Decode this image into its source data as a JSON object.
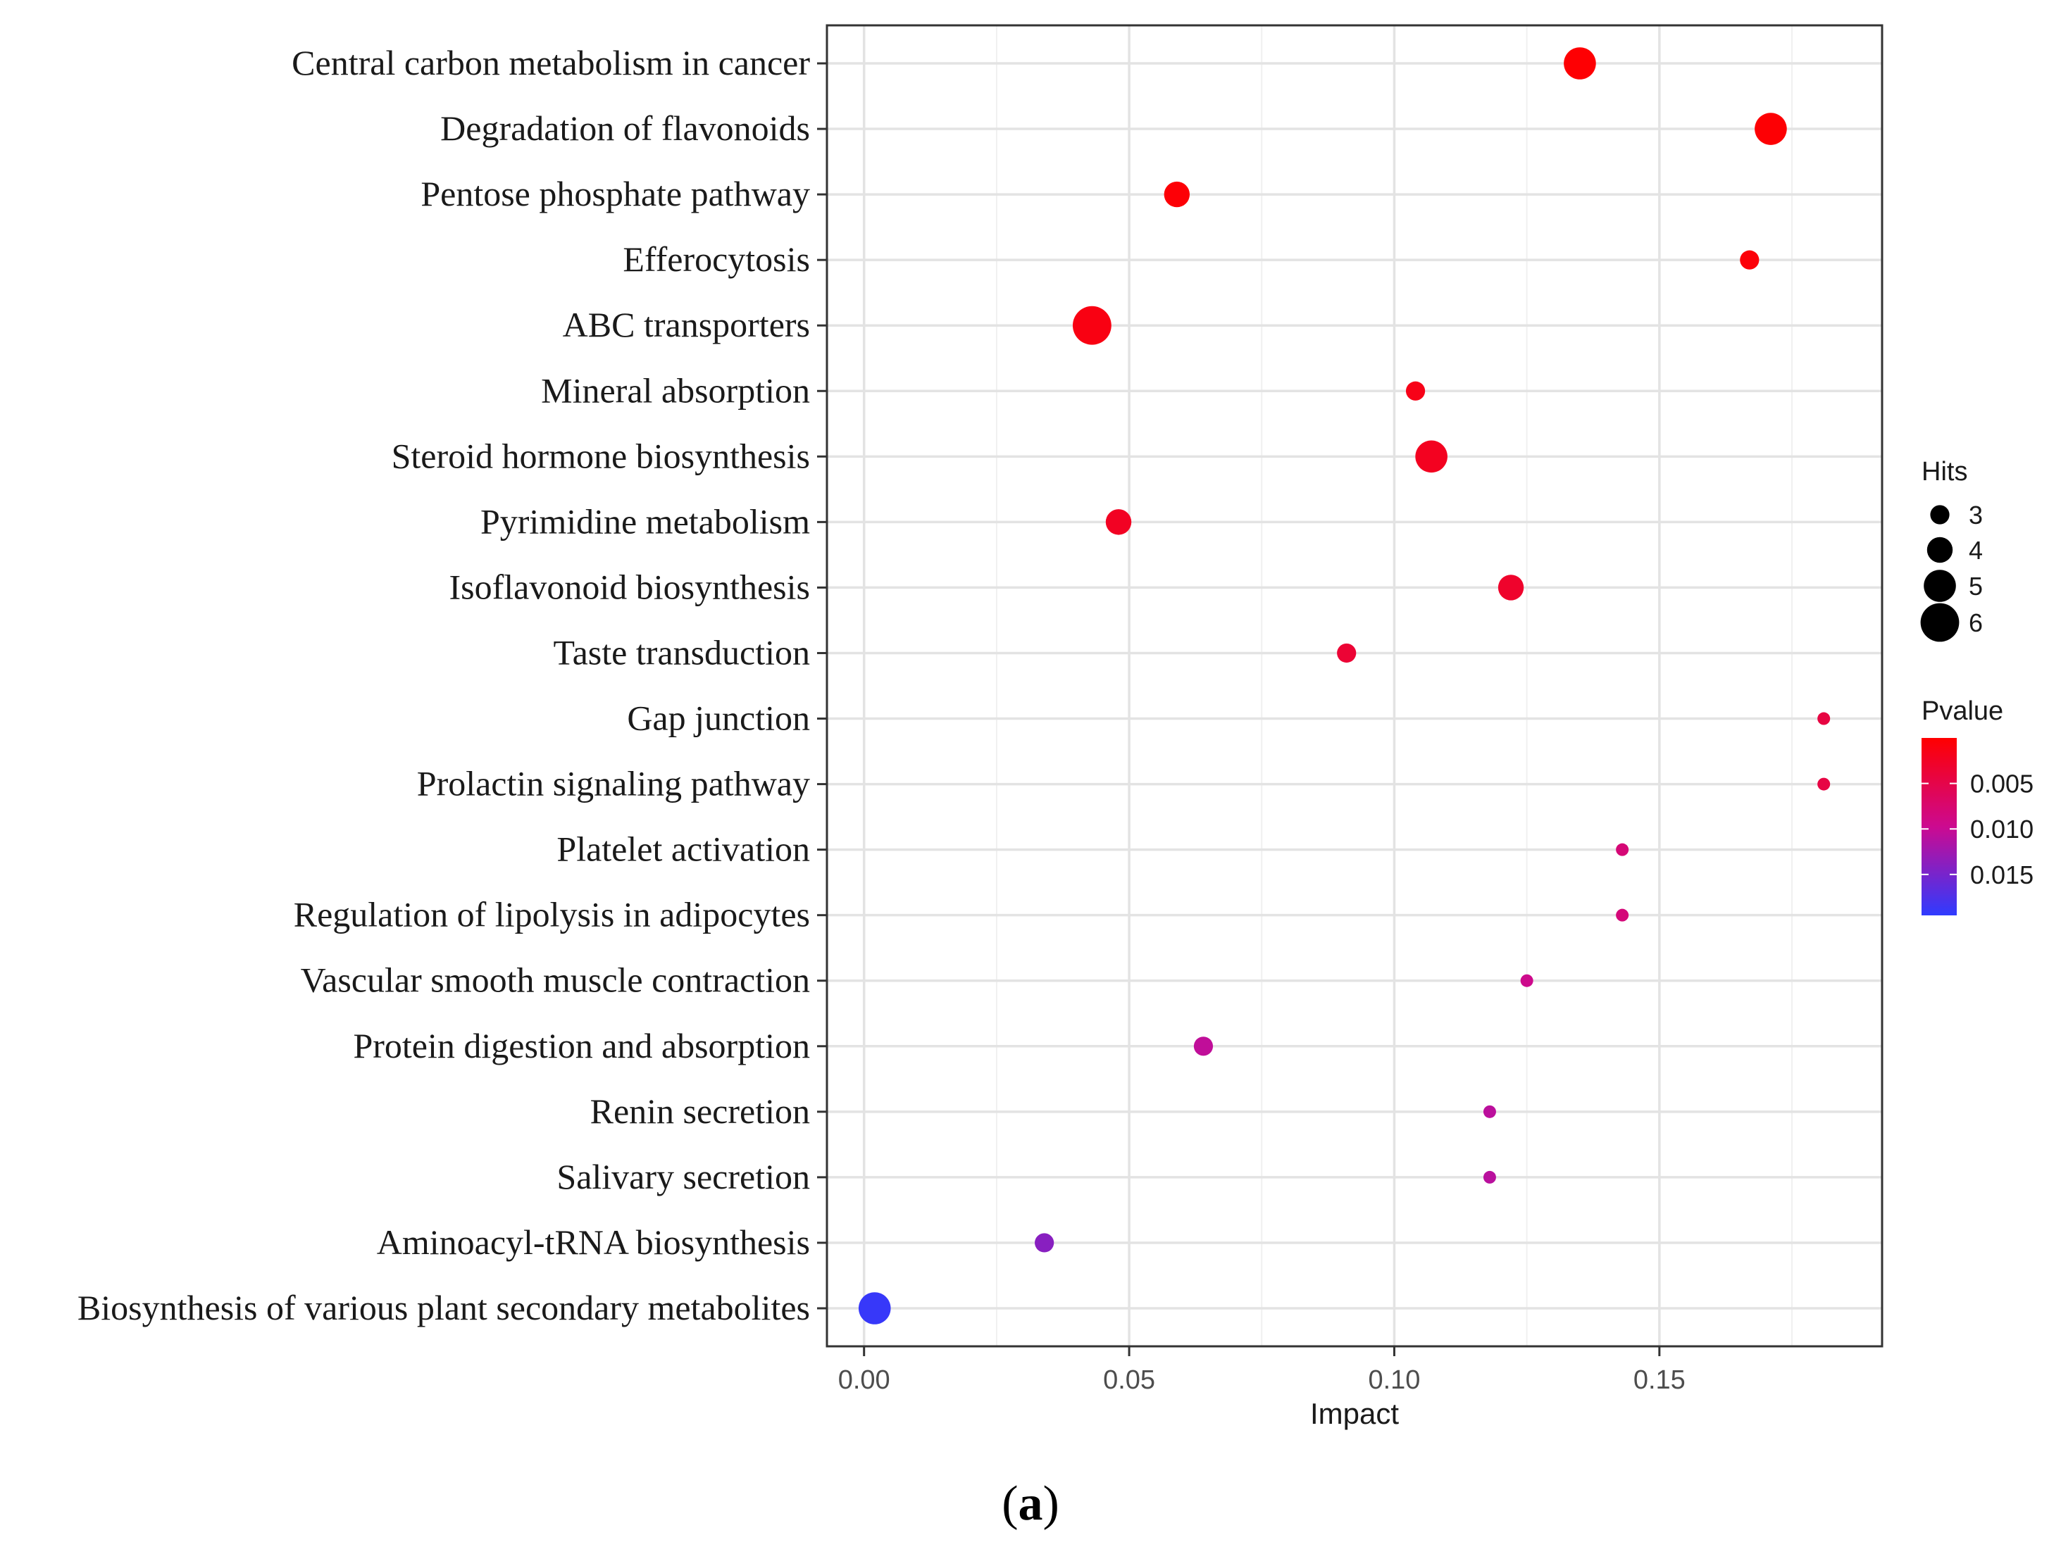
{
  "chart_data": {
    "type": "scatter",
    "title": "",
    "xlabel": "Impact",
    "ylabel": "",
    "xlim": [
      -0.007,
      0.192
    ],
    "xticks": [
      0.0,
      0.05,
      0.1,
      0.15
    ],
    "xtick_labels": [
      "0.00",
      "0.05",
      "0.10",
      "0.15"
    ],
    "grid": true,
    "categories": [
      "Central carbon metabolism in cancer",
      "Degradation of flavonoids",
      "Pentose phosphate pathway",
      "Efferocytosis",
      "ABC transporters",
      "Mineral absorption",
      "Steroid hormone biosynthesis",
      "Pyrimidine metabolism",
      "Isoflavonoid biosynthesis",
      "Taste transduction",
      "Gap junction",
      "Prolactin signaling pathway",
      "Platelet activation",
      "Regulation of lipolysis in adipocytes",
      "Vascular smooth muscle contraction",
      "Protein digestion and absorption",
      "Renin secretion",
      "Salivary secretion",
      "Aminoacyl-tRNA biosynthesis",
      "Biosynthesis of various plant secondary metabolites"
    ],
    "points": [
      {
        "pathway": "Central carbon metabolism in cancer",
        "impact": 0.135,
        "hits": 5,
        "pvalue": 0.0002
      },
      {
        "pathway": "Degradation of flavonoids",
        "impact": 0.171,
        "hits": 5,
        "pvalue": 0.0003
      },
      {
        "pathway": "Pentose phosphate pathway",
        "impact": 0.059,
        "hits": 4,
        "pvalue": 0.0004
      },
      {
        "pathway": "Efferocytosis",
        "impact": 0.167,
        "hits": 3,
        "pvalue": 0.0006
      },
      {
        "pathway": "ABC transporters",
        "impact": 0.043,
        "hits": 6,
        "pvalue": 0.0012
      },
      {
        "pathway": "Mineral absorption",
        "impact": 0.104,
        "hits": 3,
        "pvalue": 0.0016
      },
      {
        "pathway": "Steroid hormone biosynthesis",
        "impact": 0.107,
        "hits": 5,
        "pvalue": 0.0022
      },
      {
        "pathway": "Pyrimidine metabolism",
        "impact": 0.048,
        "hits": 4,
        "pvalue": 0.0024
      },
      {
        "pathway": "Isoflavonoid biosynthesis",
        "impact": 0.122,
        "hits": 4,
        "pvalue": 0.003
      },
      {
        "pathway": "Taste transduction",
        "impact": 0.091,
        "hits": 3,
        "pvalue": 0.0036
      },
      {
        "pathway": "Gap junction",
        "impact": 0.181,
        "hits": 2,
        "pvalue": 0.0045
      },
      {
        "pathway": "Prolactin signaling pathway",
        "impact": 0.181,
        "hits": 2,
        "pvalue": 0.0046
      },
      {
        "pathway": "Platelet activation",
        "impact": 0.143,
        "hits": 2,
        "pvalue": 0.008
      },
      {
        "pathway": "Regulation of lipolysis in adipocytes",
        "impact": 0.143,
        "hits": 2,
        "pvalue": 0.0082
      },
      {
        "pathway": "Vascular smooth muscle contraction",
        "impact": 0.125,
        "hits": 2,
        "pvalue": 0.0095
      },
      {
        "pathway": "Protein digestion and absorption",
        "impact": 0.064,
        "hits": 3,
        "pvalue": 0.0105
      },
      {
        "pathway": "Renin secretion",
        "impact": 0.118,
        "hits": 2,
        "pvalue": 0.0108
      },
      {
        "pathway": "Salivary secretion",
        "impact": 0.118,
        "hits": 2,
        "pvalue": 0.0109
      },
      {
        "pathway": "Aminoacyl-tRNA biosynthesis",
        "impact": 0.034,
        "hits": 3,
        "pvalue": 0.014
      },
      {
        "pathway": "Biosynthesis of various plant secondary metabolites",
        "impact": 0.002,
        "hits": 5,
        "pvalue": 0.019
      }
    ],
    "size_legend": {
      "title": "Hits",
      "values": [
        3,
        4,
        5,
        6
      ],
      "labels": [
        "3",
        "4",
        "5",
        "6"
      ]
    },
    "color_legend": {
      "title": "Pvalue",
      "low_color": "#ff0000",
      "high_color": "#2f3bff",
      "range": [
        0.0,
        0.0195
      ],
      "ticks": [
        0.005,
        0.01,
        0.015
      ],
      "tick_labels": [
        "0.005",
        "0.010",
        "0.015"
      ]
    }
  },
  "caption": {
    "open": "(",
    "letter": "a",
    "close": ")"
  }
}
